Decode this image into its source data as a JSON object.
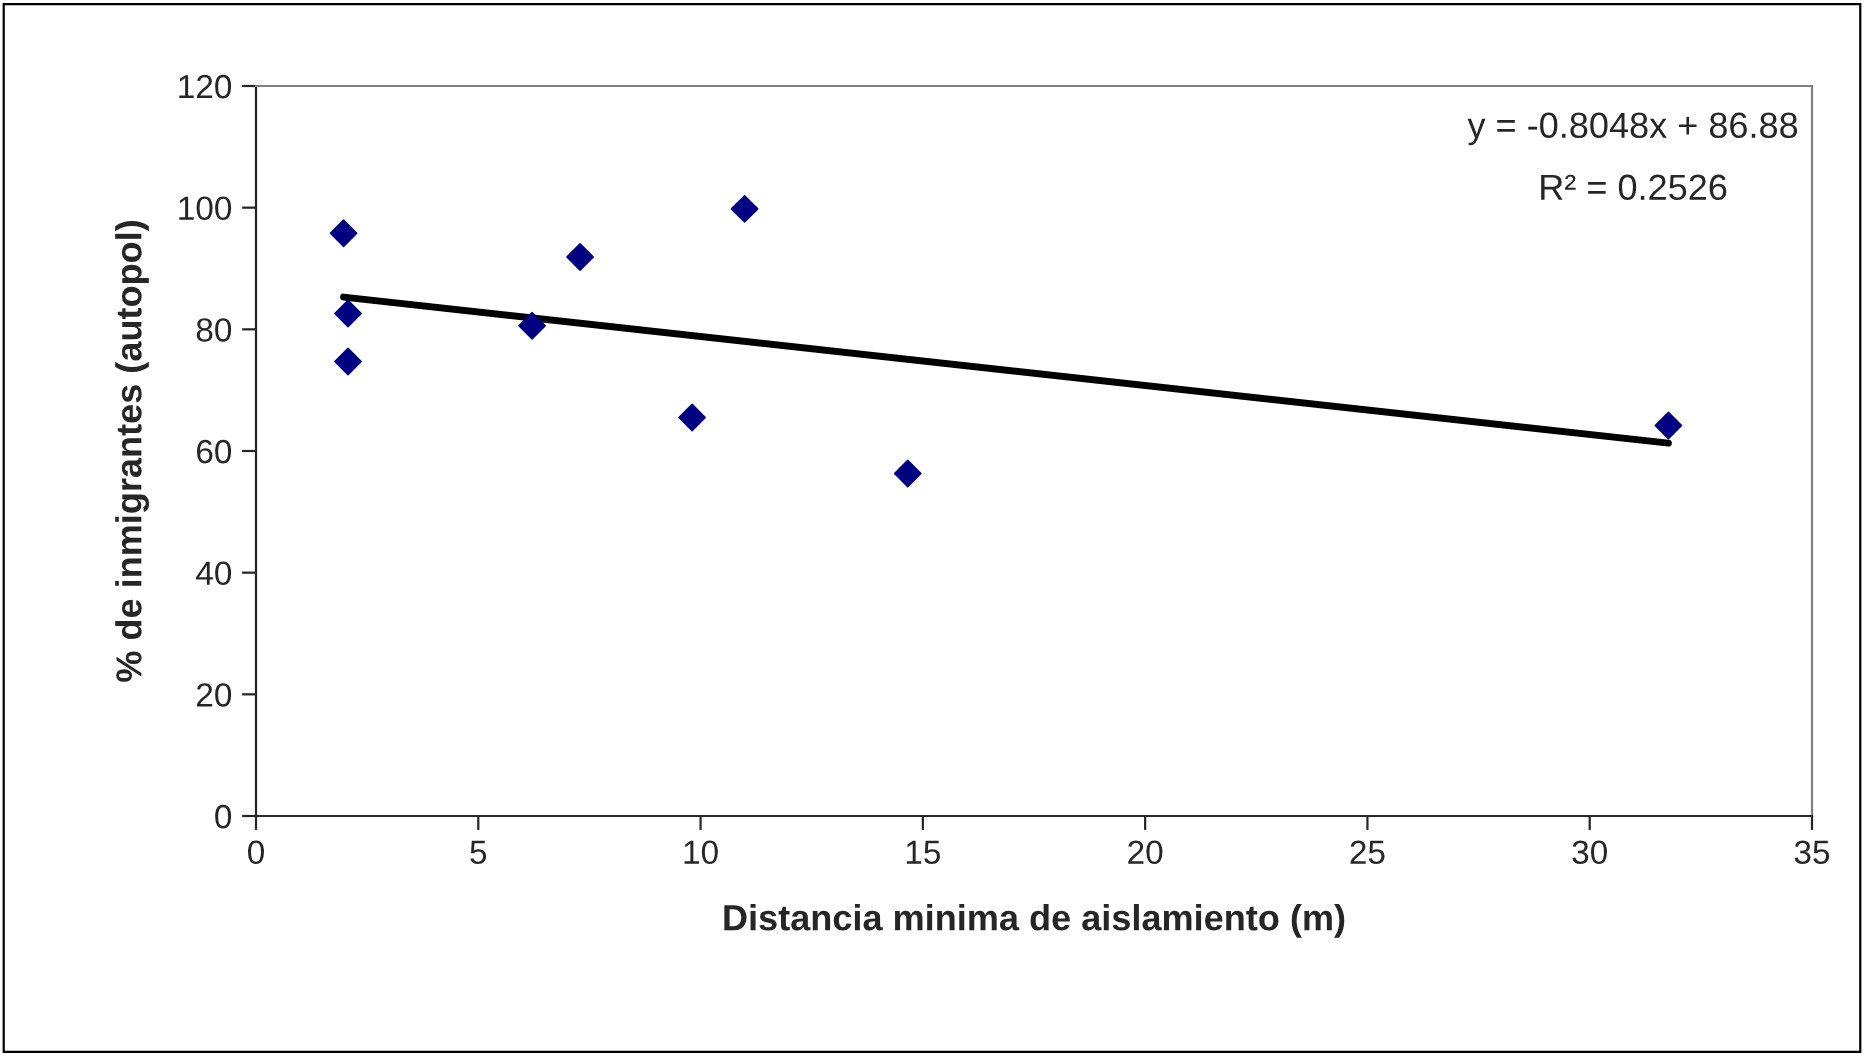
{
  "chart_data": {
    "type": "scatter",
    "xlabel": "Distancia minima de aislamiento (m)",
    "ylabel": "% de inmigrantes (autopol)",
    "xlim": [
      0,
      35
    ],
    "xticks": [
      0,
      5,
      10,
      15,
      20,
      25,
      30,
      35
    ],
    "ylim": [
      0,
      120
    ],
    "yticks": [
      0,
      20,
      40,
      60,
      80,
      100,
      120
    ],
    "grid": false,
    "legend": false,
    "annotations": [
      "y = -0.8048x + 86.88",
      "R² = 0.2526"
    ],
    "series": [
      {
        "color": "#000080",
        "marker": "diamond",
        "x": [
          1.97,
          2.07,
          2.07,
          6.21,
          7.29,
          10.99,
          9.81,
          14.66,
          31.77
        ],
        "values": [
          95.8,
          82.6,
          74.7,
          80.6,
          91.9,
          99.8,
          65.5,
          56.3,
          64.2
        ]
      },
      {
        "type": "line",
        "color": "#000000",
        "line_style": "solid",
        "marker": "none",
        "x": [
          1.97,
          31.77
        ],
        "values": [
          85.3,
          61.3
        ]
      }
    ]
  }
}
